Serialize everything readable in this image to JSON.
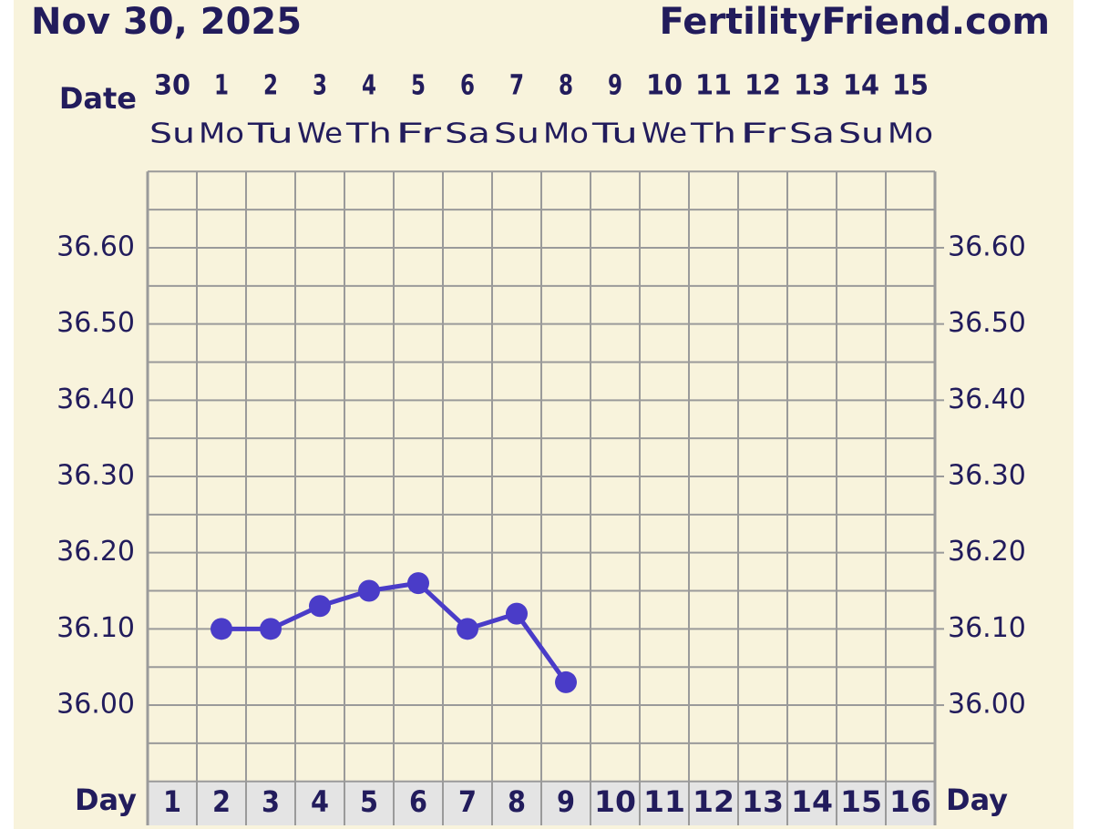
{
  "chart_data": {
    "type": "line",
    "title": "Nov 30, 2025",
    "site": "FertilityFriend.com",
    "date_label": "Date",
    "day_label": "Day",
    "dates": [
      "30",
      "1",
      "2",
      "3",
      "4",
      "5",
      "6",
      "7",
      "8",
      "9",
      "10",
      "11",
      "12",
      "13",
      "14",
      "15"
    ],
    "weekdays": [
      "Su",
      "Mo",
      "Tu",
      "We",
      "Th",
      "Fr",
      "Sa",
      "Su",
      "Mo",
      "Tu",
      "We",
      "Th",
      "Fr",
      "Sa",
      "Su",
      "Mo"
    ],
    "categories": [
      "1",
      "2",
      "3",
      "4",
      "5",
      "6",
      "7",
      "8",
      "9",
      "10",
      "11",
      "12",
      "13",
      "14",
      "15",
      "16"
    ],
    "series": [
      {
        "color": "#4a3cc8",
        "values": [
          null,
          36.1,
          36.1,
          36.13,
          36.15,
          36.16,
          36.1,
          36.12,
          36.03,
          null,
          null,
          null,
          null,
          null,
          null,
          null
        ]
      }
    ],
    "ylim": [
      35.9,
      36.7
    ],
    "yticks": [
      {
        "value": 36.0,
        "label": "36.00"
      },
      {
        "value": 36.1,
        "label": "36.10"
      },
      {
        "value": 36.2,
        "label": "36.20"
      },
      {
        "value": 36.3,
        "label": "36.30"
      },
      {
        "value": 36.4,
        "label": "36.40"
      },
      {
        "value": 36.5,
        "label": "36.50"
      },
      {
        "value": 36.6,
        "label": "36.60"
      }
    ],
    "grid_yticks": [
      35.9,
      35.95,
      36.0,
      36.05,
      36.1,
      36.15,
      36.2,
      36.25,
      36.3,
      36.35,
      36.4,
      36.45,
      36.5,
      36.55,
      36.6,
      36.65,
      36.7
    ],
    "grid": true
  }
}
